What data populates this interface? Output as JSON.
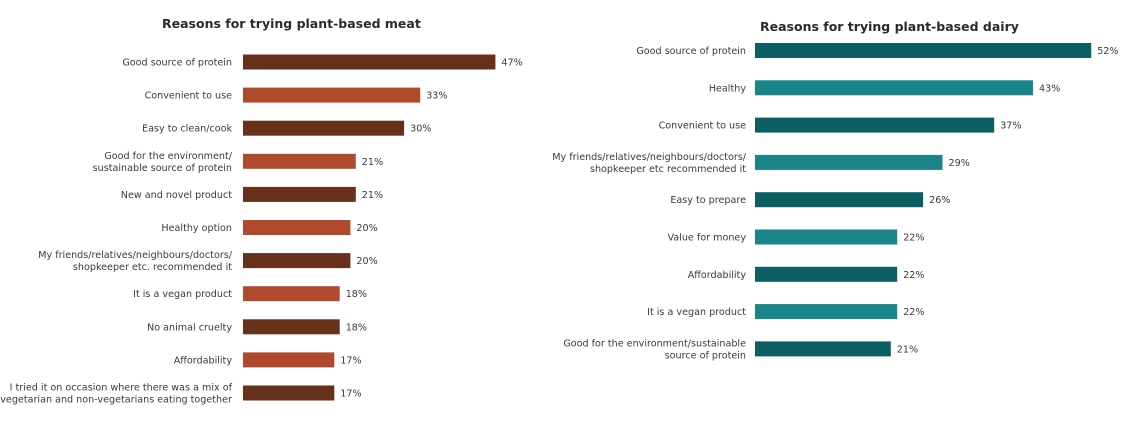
{
  "chart_data": [
    {
      "type": "bar",
      "orientation": "horizontal",
      "title": "Reasons for trying plant-based meat",
      "value_suffix": "%",
      "colors": [
        "#66301a",
        "#b04a2c"
      ],
      "categories": [
        [
          "Good source of protein"
        ],
        [
          "Convenient to use"
        ],
        [
          "Easy to clean/cook"
        ],
        [
          "Good for the environment/",
          "sustainable source of protein"
        ],
        [
          "New and novel product"
        ],
        [
          "Healthy option"
        ],
        [
          "My friends/relatives/neighbours/doctors/",
          "shopkeeper etc. recommended it"
        ],
        [
          "It is a vegan product"
        ],
        [
          "No animal cruelty"
        ],
        [
          "Affordability"
        ],
        [
          "I tried it on occasion where there was a mix of",
          "vegetarian and non-vegetarians eating together"
        ]
      ],
      "values": [
        47,
        33,
        30,
        21,
        21,
        20,
        20,
        18,
        18,
        17,
        17
      ]
    },
    {
      "type": "bar",
      "orientation": "horizontal",
      "title": "Reasons for trying plant-based dairy",
      "value_suffix": "%",
      "colors": [
        "#0b5e62",
        "#1a8489"
      ],
      "categories": [
        [
          "Good source of protein"
        ],
        [
          "Healthy"
        ],
        [
          "Convenient to use"
        ],
        [
          "My friends/relatives/neighbours/doctors/",
          "shopkeeper etc recommended it"
        ],
        [
          "Easy to prepare"
        ],
        [
          "Value for money"
        ],
        [
          "Affordability"
        ],
        [
          "It is a vegan product"
        ],
        [
          "Good for the environment/sustainable",
          "source of protein"
        ]
      ],
      "values": [
        52,
        43,
        37,
        29,
        26,
        22,
        22,
        22,
        21
      ]
    }
  ]
}
